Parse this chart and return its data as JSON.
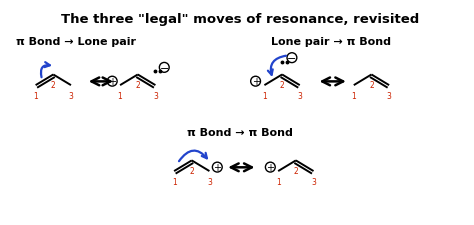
{
  "title": "The three \"legal\" moves of resonance, revisited",
  "title_fontsize": 9.5,
  "bg_color": "#ffffff",
  "label1": "π Bond → Lone pair",
  "label2": "Lone pair → π Bond",
  "label3": "π Bond → π Bond",
  "label_fontsize": 8,
  "num_color": "#cc2200",
  "black": "#000000",
  "blue": "#2244cc"
}
